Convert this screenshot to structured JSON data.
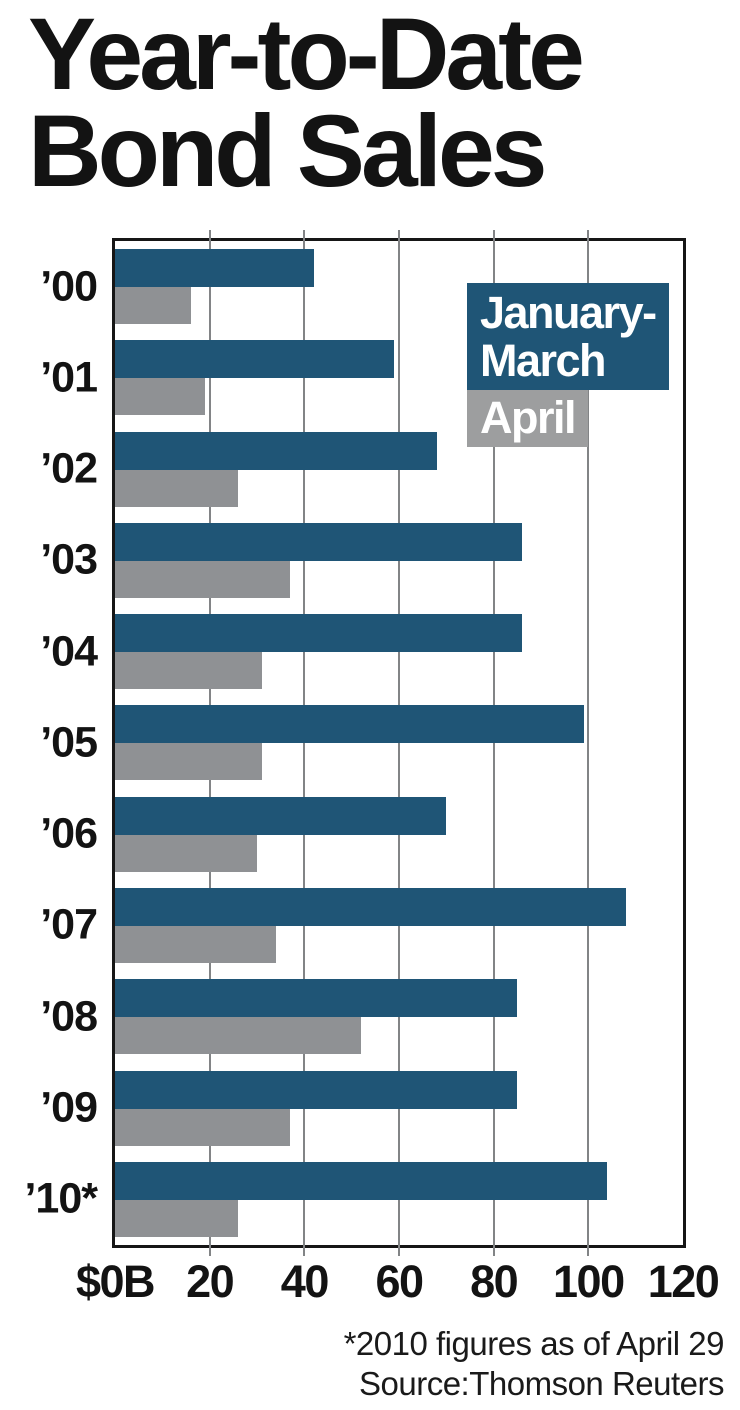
{
  "title": {
    "line1": "Year-to-Date",
    "line2": "Bond Sales"
  },
  "legend": {
    "january_march_line1": "January-",
    "january_march_line2": "March",
    "april": "April"
  },
  "footnotes": {
    "line1": "*2010 figures as of April 29",
    "line2": "Source:Thomson Reuters"
  },
  "colors": {
    "january_march": "#1f5576",
    "april_bar": "#8f9194",
    "april_legend": "#9d9e9f",
    "gridline": "#828486",
    "border": "#161616",
    "text": "#131313"
  },
  "chart_data": {
    "type": "bar",
    "orientation": "horizontal",
    "title": "Year-to-Date Bond Sales",
    "categories": [
      "’00",
      "’01",
      "’02",
      "’03",
      "’04",
      "’05",
      "’06",
      "’07",
      "’08",
      "’09",
      "’10*"
    ],
    "series": [
      {
        "name": "January-March",
        "color": "#1f5576",
        "values": [
          42,
          59,
          68,
          86,
          86,
          99,
          70,
          108,
          85,
          85,
          104
        ]
      },
      {
        "name": "April",
        "color": "#8f9194",
        "values": [
          16,
          19,
          26,
          37,
          31,
          31,
          30,
          34,
          52,
          37,
          26
        ]
      }
    ],
    "xlim": [
      0,
      120
    ],
    "xticks": [
      {
        "value": 0,
        "label": "$0B"
      },
      {
        "value": 20,
        "label": "20"
      },
      {
        "value": 40,
        "label": "40"
      },
      {
        "value": 60,
        "label": "60"
      },
      {
        "value": 80,
        "label": "80"
      },
      {
        "value": 100,
        "label": "100"
      },
      {
        "value": 120,
        "label": "120"
      }
    ],
    "gridlines": [
      20,
      40,
      60,
      80,
      100
    ],
    "grid": true,
    "legend_position": "inside-top-right",
    "footnote": "*2010 figures as of April 29",
    "source": "Source:Thomson Reuters"
  }
}
